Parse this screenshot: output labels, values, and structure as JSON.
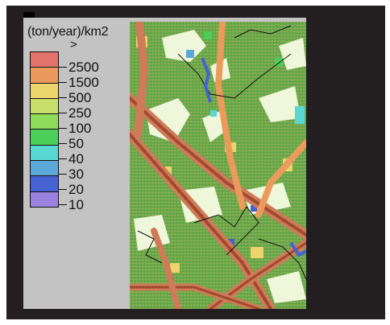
{
  "legend": {
    "title": "(ton/year)/km2",
    "top_marker": ">",
    "classes": [
      {
        "label": "2500",
        "color": "#e2726a"
      },
      {
        "label": "1500",
        "color": "#eb9a5c"
      },
      {
        "label": "500",
        "color": "#ecd46c"
      },
      {
        "label": "250",
        "color": "#c9de6b"
      },
      {
        "label": "100",
        "color": "#8ddc5a"
      },
      {
        "label": "50",
        "color": "#4ccf58"
      },
      {
        "label": "40",
        "color": "#59d7d2"
      },
      {
        "label": "30",
        "color": "#5aa9d9"
      },
      {
        "label": "20",
        "color": "#4661d2"
      },
      {
        "label": "10",
        "color": "#9b82e0"
      }
    ]
  },
  "map_colors": {
    "background": "#6aa84a",
    "light_patch": "#eef7d9",
    "road": "#a04a2e",
    "road_edge": "#cf7a58",
    "boundary": "#111111"
  }
}
